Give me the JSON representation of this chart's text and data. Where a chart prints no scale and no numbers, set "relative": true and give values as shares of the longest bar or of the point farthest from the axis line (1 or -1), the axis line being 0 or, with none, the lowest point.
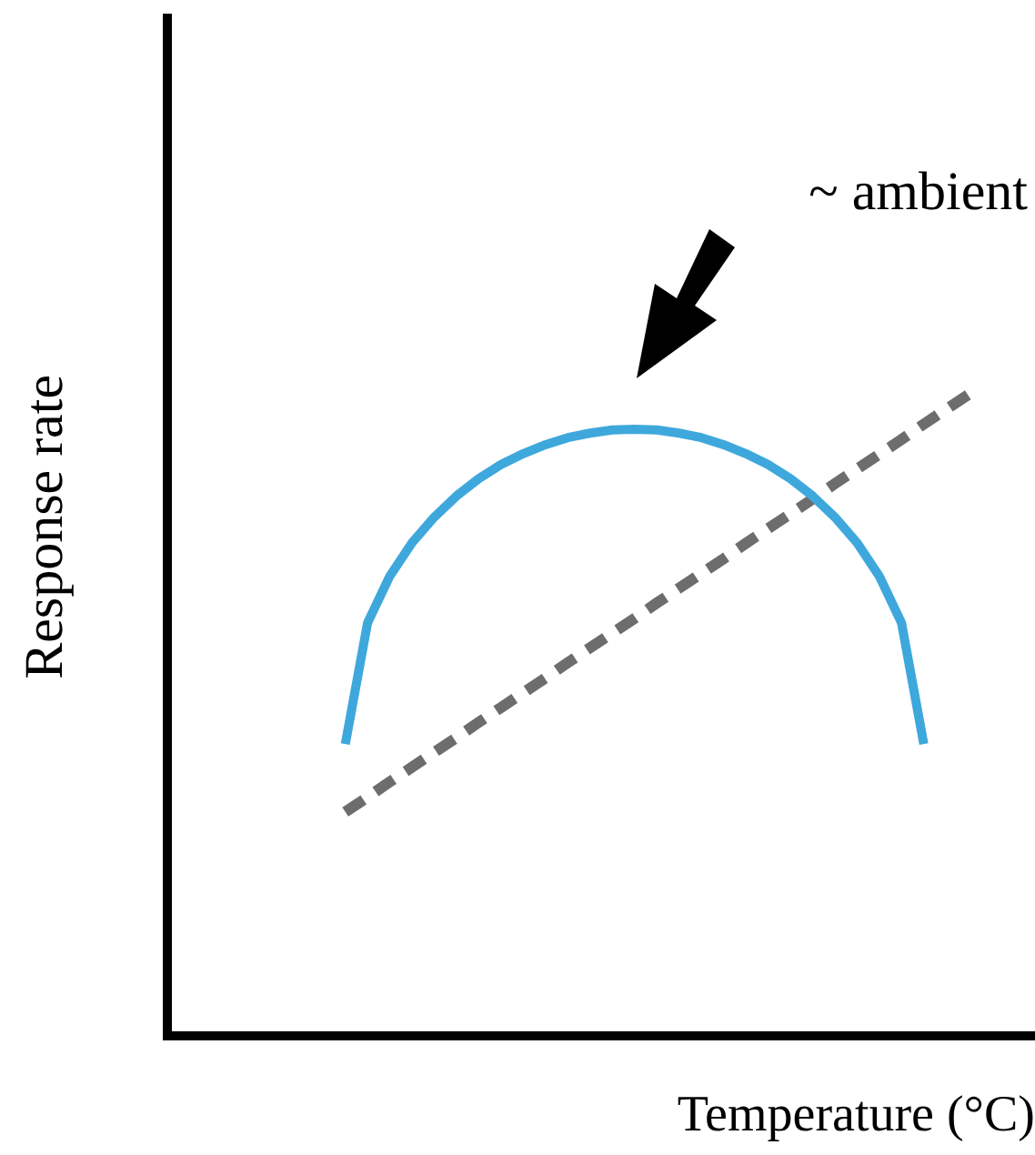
{
  "chart_data": {
    "type": "line",
    "relative": true,
    "xlabel": "Temperature (°C)",
    "ylabel": "Response rate",
    "annotations": [
      "~ ambient"
    ],
    "grid": false,
    "legend": false,
    "marker": "none",
    "categories": [
      null,
      null,
      null,
      null,
      null,
      null,
      null,
      null,
      null,
      null,
      null,
      null,
      null,
      null,
      null,
      null,
      null,
      null,
      null,
      null,
      null,
      null,
      null,
      null,
      null,
      null,
      null,
      null,
      null,
      null,
      null,
      null,
      null,
      null,
      null,
      null,
      null,
      null,
      null,
      null
    ],
    "series": [
      {
        "color": "#3ea8dc",
        "line_style": "solid",
        "values": [
          null,
          null,
          null,
          null,
          null,
          null,
          null,
          null,
          0.455,
          0.644,
          0.717,
          0.769,
          0.809,
          0.842,
          0.869,
          0.891,
          0.908,
          0.922,
          0.933,
          0.94,
          0.945,
          0.946,
          0.945,
          0.94,
          0.933,
          0.922,
          0.908,
          0.891,
          0.869,
          0.842,
          0.809,
          0.769,
          0.717,
          0.644,
          0.455,
          null,
          null,
          null,
          null,
          null
        ]
      },
      {
        "color": "#6d6d6d",
        "line_style": "dashed",
        "values": [
          null,
          null,
          null,
          null,
          null,
          null,
          null,
          null,
          0.349,
          0.372,
          0.396,
          0.419,
          0.442,
          0.465,
          0.489,
          0.512,
          0.535,
          0.558,
          0.582,
          0.605,
          0.628,
          0.651,
          0.675,
          0.698,
          0.721,
          0.744,
          0.768,
          0.791,
          0.814,
          0.837,
          0.861,
          0.884,
          0.907,
          0.93,
          0.954,
          0.977,
          1.0,
          null,
          null,
          null
        ]
      }
    ]
  }
}
